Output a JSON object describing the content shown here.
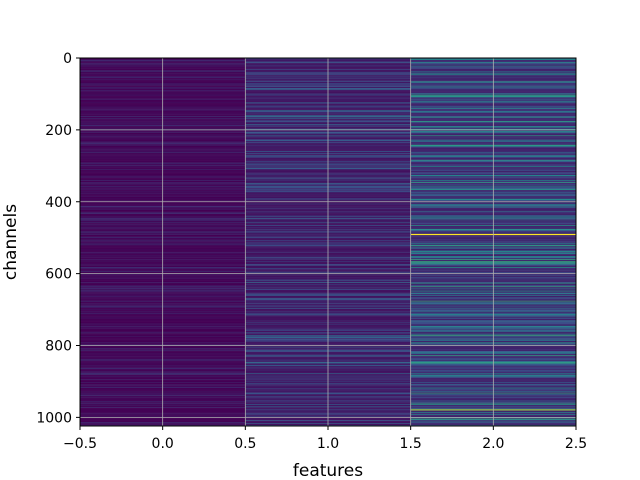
{
  "chart_data": {
    "type": "heatmap",
    "colormap": "viridis",
    "xlabel": "features",
    "ylabel": "channels",
    "xlim": [
      -0.5,
      2.5
    ],
    "ylim": [
      1024,
      0
    ],
    "n_rows": 1024,
    "columns": [
      0,
      1,
      2
    ],
    "grid": true,
    "grid_color": "#b0b0b0",
    "x_ticks": [
      -0.5,
      0.0,
      0.5,
      1.0,
      1.5,
      2.0,
      2.5
    ],
    "x_tick_labels": [
      "−0.5",
      "0.0",
      "0.5",
      "1.0",
      "1.5",
      "2.0",
      "2.5"
    ],
    "y_ticks": [
      0,
      200,
      400,
      600,
      800,
      1000
    ],
    "y_tick_labels": [
      "0",
      "200",
      "400",
      "600",
      "800",
      "1000"
    ],
    "column_value_ranges": [
      [
        0.0,
        0.15
      ],
      [
        0.05,
        0.35
      ],
      [
        0.1,
        0.6
      ]
    ],
    "highlight_rows": [
      {
        "column": 2,
        "row": 490,
        "value": 1.0
      },
      {
        "column": 2,
        "row": 978,
        "value": 0.85
      }
    ]
  }
}
